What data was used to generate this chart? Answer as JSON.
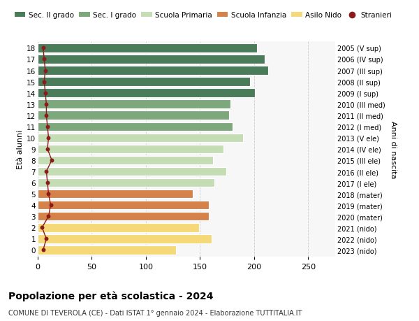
{
  "ages": [
    18,
    17,
    16,
    15,
    14,
    13,
    12,
    11,
    10,
    9,
    8,
    7,
    6,
    5,
    4,
    3,
    2,
    1,
    0
  ],
  "right_labels": [
    "2005 (V sup)",
    "2006 (IV sup)",
    "2007 (III sup)",
    "2008 (II sup)",
    "2009 (I sup)",
    "2010 (III med)",
    "2011 (II med)",
    "2012 (I med)",
    "2013 (V ele)",
    "2014 (IV ele)",
    "2015 (III ele)",
    "2016 (II ele)",
    "2017 (I ele)",
    "2018 (mater)",
    "2019 (mater)",
    "2020 (mater)",
    "2021 (nido)",
    "2022 (nido)",
    "2023 (nido)"
  ],
  "bar_values": [
    203,
    210,
    213,
    196,
    201,
    178,
    177,
    180,
    190,
    172,
    162,
    174,
    163,
    143,
    158,
    158,
    149,
    161,
    128
  ],
  "bar_colors": [
    "#4a7c59",
    "#4a7c59",
    "#4a7c59",
    "#4a7c59",
    "#4a7c59",
    "#7da87b",
    "#7da87b",
    "#7da87b",
    "#c5ddb5",
    "#c5ddb5",
    "#c5ddb5",
    "#c5ddb5",
    "#c5ddb5",
    "#d4824a",
    "#d4824a",
    "#d4824a",
    "#f5d878",
    "#f5d878",
    "#f5d878"
  ],
  "stranieri_values": [
    5,
    6,
    7,
    6,
    7,
    8,
    8,
    9,
    10,
    9,
    13,
    8,
    9,
    10,
    12,
    10,
    4,
    8,
    5
  ],
  "stranieri_color": "#8b1a1a",
  "ylabel_left": "Età alunni",
  "ylabel_right": "Anni di nascita",
  "xlim": [
    0,
    275
  ],
  "xticks": [
    0,
    50,
    100,
    150,
    200,
    250
  ],
  "title": "Popolazione per età scolastica - 2024",
  "subtitle": "COMUNE DI TEVEROLA (CE) - Dati ISTAT 1° gennaio 2024 - Elaborazione TUTTITALIA.IT",
  "legend_items": [
    {
      "label": "Sec. II grado",
      "color": "#4a7c59"
    },
    {
      "label": "Sec. I grado",
      "color": "#7da87b"
    },
    {
      "label": "Scuola Primaria",
      "color": "#c5ddb5"
    },
    {
      "label": "Scuola Infanzia",
      "color": "#d4824a"
    },
    {
      "label": "Asilo Nido",
      "color": "#f5d878"
    },
    {
      "label": "Stranieri",
      "color": "#8b1a1a"
    }
  ],
  "background_color": "#ffffff",
  "plot_bg_color": "#f7f7f7",
  "grid_color": "#cccccc",
  "bar_height": 0.78
}
